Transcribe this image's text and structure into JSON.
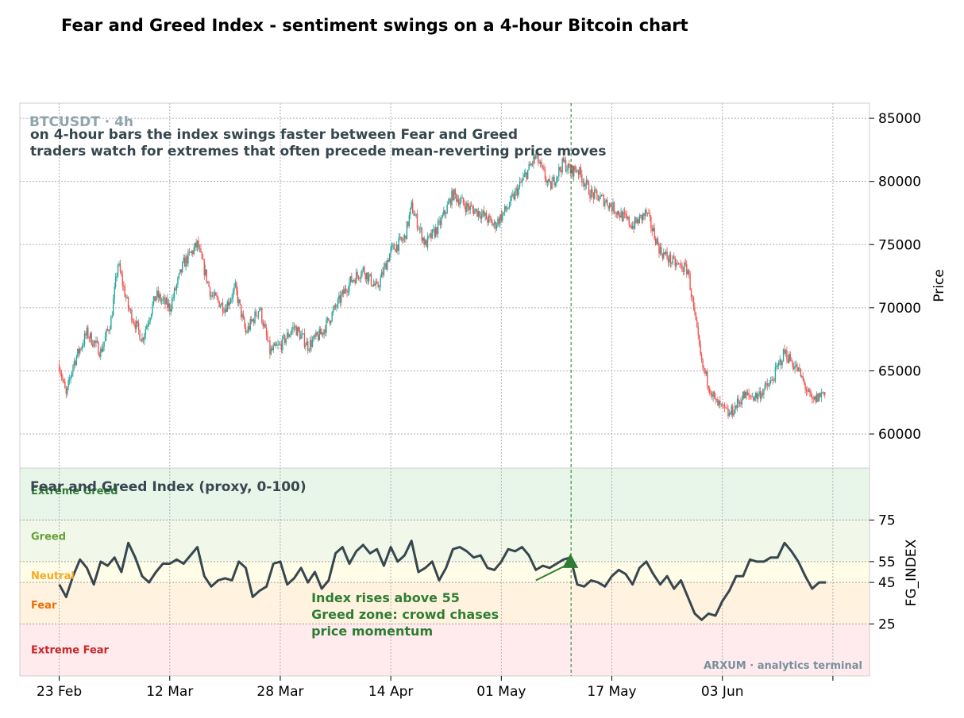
{
  "page": {
    "title": "Fear and Greed Index - sentiment swings on a 4-hour Bitcoin chart"
  },
  "colors": {
    "up": "#26a69a",
    "down": "#ef5350",
    "fg_line": "#37474f",
    "extreme_greed_zone": "#e8f5e9",
    "greed_zone": "#f1f8e9",
    "neutral_zone": "#fffde7",
    "fear_zone": "#fff3e0",
    "extreme_fear_zone": "#ffebee",
    "annotation": "#2e7d32",
    "grid": "#b0b0b0"
  },
  "chart_data": [
    {
      "type": "candlestick",
      "symbol_label": "BTCUSDT · 4h",
      "subtitle_lines": [
        "on 4-hour bars the index swings faster between Fear and Greed",
        "traders watch for extremes that often precede mean-reverting price moves"
      ],
      "ylabel": "Price",
      "ylim": [
        57300,
        86200
      ],
      "yticks": [
        60000,
        65000,
        70000,
        75000,
        80000,
        85000
      ],
      "x_tick_labels": [
        "23 Feb",
        "12 Mar",
        "28 Mar",
        "14 Apr",
        "01 May",
        "17 May",
        "03 Jun",
        ""
      ],
      "x_tick_days": [
        0,
        16,
        32,
        48,
        64,
        80,
        96,
        112
      ],
      "x_range_days": [
        -5.7,
        117.3
      ],
      "grid": true,
      "event_line_day": 74.1,
      "price_path_days": [
        0,
        1,
        2,
        4,
        6,
        7.5,
        8.5,
        10,
        12,
        14,
        16,
        18,
        20,
        22,
        24,
        25.5,
        27,
        29,
        30.5,
        32,
        34,
        36,
        38,
        40,
        42,
        44,
        46,
        48,
        50,
        51,
        53,
        55,
        57,
        59,
        61,
        63,
        65,
        67,
        69,
        71,
        73,
        74,
        75,
        77,
        79,
        81,
        83,
        85,
        87,
        89,
        91,
        93,
        95,
        97,
        99,
        101,
        103,
        105,
        107,
        109,
        111
      ],
      "price_path_values": [
        65500,
        63000,
        65500,
        68000,
        66500,
        69000,
        73500,
        70000,
        67500,
        71000,
        70000,
        73500,
        75000,
        71000,
        70000,
        71500,
        68000,
        70000,
        66500,
        67000,
        68500,
        67000,
        68000,
        70000,
        72000,
        73000,
        71500,
        74500,
        75500,
        78000,
        75000,
        76500,
        79000,
        78000,
        77500,
        76500,
        78000,
        80000,
        82000,
        79500,
        81500,
        80800,
        81000,
        79000,
        78500,
        77500,
        76500,
        77500,
        74500,
        73500,
        73000,
        65500,
        62500,
        61500,
        63000,
        63000,
        64000,
        66500,
        65000,
        62500,
        63500
      ]
    },
    {
      "type": "line",
      "title": "Fear and Greed Index (proxy, 0-100)",
      "ylabel": "FG_INDEX",
      "ylim": [
        0,
        100
      ],
      "yticks": [
        25,
        45,
        55,
        75
      ],
      "zones": [
        {
          "name": "Extreme Greed",
          "from": 75,
          "to": 100,
          "color": "#e8f5e9",
          "label_color": "#2e7d32"
        },
        {
          "name": "Greed",
          "from": 55,
          "to": 75,
          "color": "#f1f8e9",
          "label_color": "#689f38"
        },
        {
          "name": "Neutral",
          "from": 45,
          "to": 55,
          "color": "#fffde7",
          "label_color": "#f9a825"
        },
        {
          "name": "Fear",
          "from": 25,
          "to": 45,
          "color": "#fff3e0",
          "label_color": "#ef6c00"
        },
        {
          "name": "Extreme Fear",
          "from": 0,
          "to": 25,
          "color": "#ffebee",
          "label_color": "#c62828"
        }
      ],
      "x_days": [
        0,
        1,
        2,
        3,
        4,
        5,
        6,
        7,
        8,
        9,
        10,
        11,
        12,
        13,
        14,
        15,
        16,
        17,
        18,
        19,
        20,
        21,
        22,
        23,
        24,
        25,
        26,
        27,
        28,
        29,
        30,
        31,
        32,
        33,
        34,
        35,
        36,
        37,
        38,
        39,
        40,
        41,
        42,
        43,
        44,
        45,
        46,
        47,
        48,
        49,
        50,
        51,
        52,
        53,
        54,
        55,
        56,
        57,
        58,
        59,
        60,
        61,
        62,
        63,
        64,
        65,
        66,
        67,
        68,
        69,
        70,
        71,
        72,
        73,
        74,
        75,
        76,
        77,
        78,
        79,
        80,
        81,
        82,
        83,
        84,
        85,
        86,
        87,
        88,
        89,
        90,
        91,
        92,
        93,
        94,
        95,
        96,
        97,
        98,
        99,
        100,
        101,
        102,
        103,
        104,
        105,
        106,
        107,
        108,
        109,
        110,
        111
      ],
      "values": [
        44,
        38,
        48,
        56,
        52,
        44,
        55,
        53,
        57,
        50,
        64,
        57,
        48,
        45,
        50,
        54,
        54,
        56,
        54,
        58,
        62,
        48,
        43,
        46,
        47,
        46,
        55,
        52,
        38,
        41,
        43,
        54,
        55,
        44,
        47,
        52,
        45,
        50,
        42,
        46,
        59,
        62,
        54,
        60,
        63,
        59,
        61,
        53,
        62,
        55,
        58,
        65,
        50,
        52,
        55,
        46,
        52,
        61,
        62,
        60,
        57,
        58,
        52,
        51,
        55,
        61,
        60,
        62,
        58,
        51,
        53,
        52,
        54,
        56,
        57,
        44,
        43,
        46,
        45,
        43,
        48,
        51,
        49,
        44,
        52,
        55,
        49,
        44,
        48,
        42,
        46,
        38,
        30,
        27,
        30,
        29,
        36,
        41,
        48,
        48,
        56,
        55,
        55,
        57,
        57,
        64,
        60,
        55,
        48,
        42,
        45,
        45
      ],
      "crossover_day": 74,
      "crossover_value": 55,
      "annotation_lines": [
        "Index rises above 55",
        "Greed zone: crowd chases",
        "price momentum"
      ],
      "watermark": "ARXUM · analytics terminal"
    }
  ]
}
